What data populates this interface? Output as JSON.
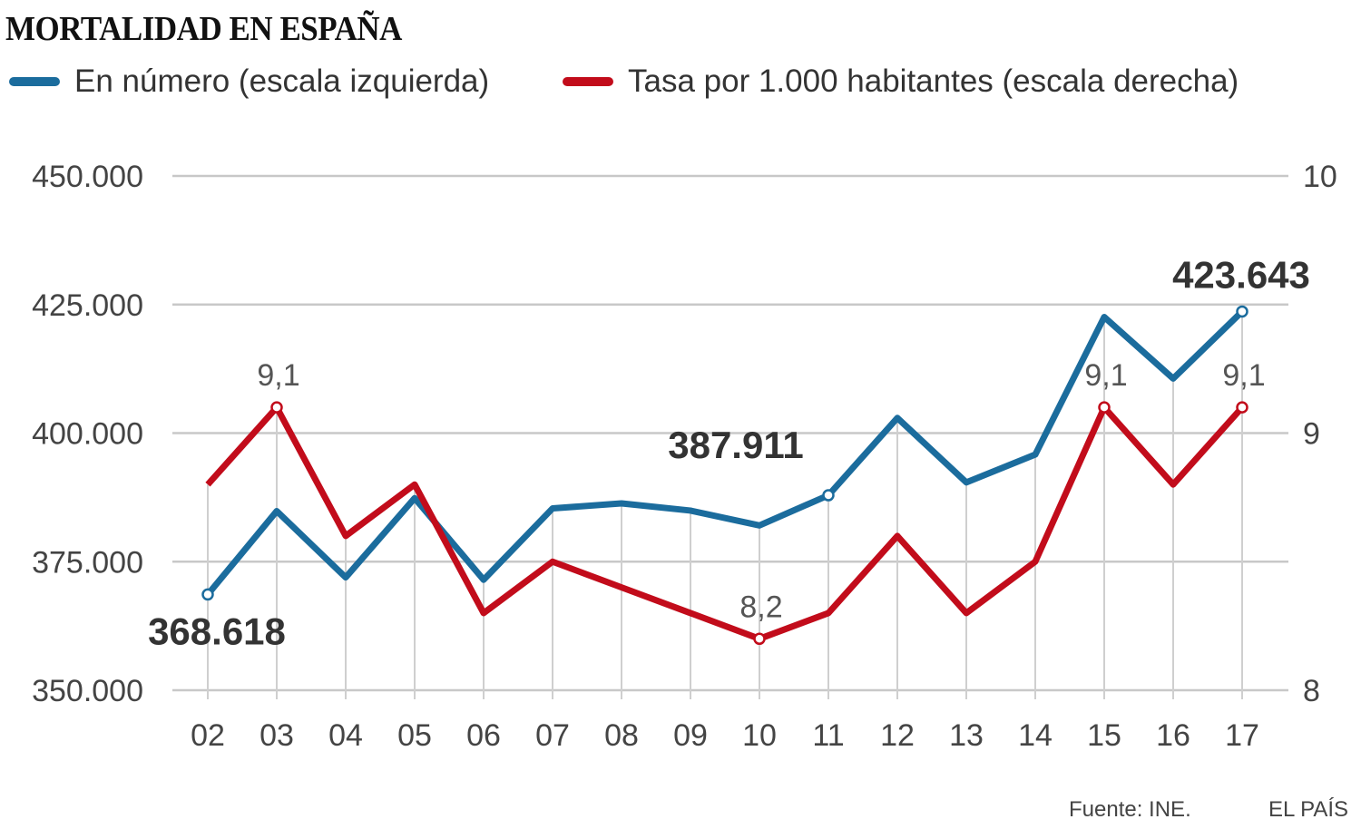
{
  "chart_data": {
    "type": "line",
    "title": "MORTALIDAD EN ESPAÑA",
    "categories": [
      "02",
      "03",
      "04",
      "05",
      "06",
      "07",
      "08",
      "09",
      "10",
      "11",
      "12",
      "13",
      "14",
      "15",
      "16",
      "17"
    ],
    "series": [
      {
        "name": "En número (escala izquierda)",
        "axis": "left",
        "color": "#1b6c9d",
        "values": [
          368618,
          384828,
          371934,
          387355,
          371478,
          385361,
          386324,
          384933,
          382047,
          387911,
          402950,
          390419,
          395830,
          422568,
          410611,
          423643
        ]
      },
      {
        "name": "Tasa por 1.000 habitantes (escala derecha)",
        "axis": "right",
        "color": "#c20c1b",
        "values": [
          8.8,
          9.1,
          8.6,
          8.8,
          8.3,
          8.5,
          8.4,
          8.3,
          8.2,
          8.3,
          8.6,
          8.3,
          8.5,
          9.1,
          8.8,
          9.1
        ]
      }
    ],
    "left_axis": {
      "ylim": [
        350000,
        450000
      ],
      "ticks": [
        "350.000",
        "375.000",
        "400.000",
        "425.000",
        "450.000"
      ]
    },
    "right_axis": {
      "ylim": [
        8,
        10
      ],
      "ticks": [
        "8",
        "9",
        "10"
      ]
    },
    "annotations": [
      {
        "series": 0,
        "index": 0,
        "text": "368.618"
      },
      {
        "series": 0,
        "index": 9,
        "text": "387.911"
      },
      {
        "series": 0,
        "index": 15,
        "text": "423.643"
      },
      {
        "series": 1,
        "index": 1,
        "text": "9,1"
      },
      {
        "series": 1,
        "index": 8,
        "text": "8,2"
      },
      {
        "series": 1,
        "index": 13,
        "text": "9,1"
      },
      {
        "series": 1,
        "index": 15,
        "text": "9,1"
      }
    ],
    "grid": true,
    "legend": "top-left"
  },
  "footer": {
    "source": "Fuente: INE.",
    "brand": "EL PAÍS"
  }
}
